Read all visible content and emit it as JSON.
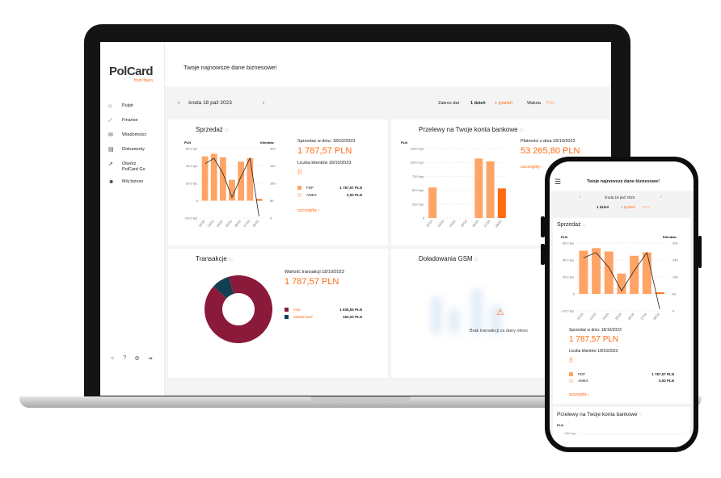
{
  "app": {
    "logo": "PolCard",
    "logo_sub": "from fiserv.",
    "header_title": "Twoje najnowsze dane biznesowe!"
  },
  "sidebar": {
    "items": [
      {
        "icon": "home-icon",
        "glyph": "⌂",
        "label": "Pulpit"
      },
      {
        "icon": "chart-icon",
        "glyph": "⟋",
        "label": "Finanse"
      },
      {
        "icon": "mail-icon",
        "glyph": "✉",
        "label": "Wiadomości"
      },
      {
        "icon": "document-icon",
        "glyph": "▤",
        "label": "Dokumenty"
      },
      {
        "icon": "open-link-icon",
        "glyph": "⇗",
        "label": "Otwórz PolCard Go"
      },
      {
        "icon": "users-icon",
        "glyph": "☻",
        "label": "Mój biznes"
      }
    ],
    "footer": [
      {
        "icon": "brightness-icon",
        "glyph": "☼"
      },
      {
        "icon": "help-icon",
        "glyph": "?"
      },
      {
        "icon": "settings-icon",
        "glyph": "⚙"
      },
      {
        "icon": "logout-icon",
        "glyph": "⇥"
      }
    ]
  },
  "datebar": {
    "prev": "‹",
    "date": "środa 18 paź 2023",
    "next": "›",
    "range_label": "Zakres dat",
    "range_day": "1 dzień",
    "range_week": "1 tydzień",
    "currency_label": "Waluta",
    "currency": "PLN"
  },
  "sales": {
    "title": "Sprzedaż",
    "info": "ⓘ",
    "label_date": "Sprzedaż w dniu:  18/10/2023",
    "amount": "1 787,57 PLN",
    "clients_label": "Liczba klientów  18/10/2023",
    "clients": "8",
    "legend": [
      {
        "name": "FDP",
        "value": "1 787,57 PLN",
        "color": "#ffa466"
      },
      {
        "name": "AMEX",
        "value": "0,00 PLN",
        "color": "#ffe1cc"
      }
    ],
    "link": "szczegóły ›"
  },
  "transfers": {
    "title": "Przelewy na Twoje konta bankowe",
    "info": "ⓘ",
    "label_date": "Płatności z dnia 18/10/2023",
    "amount": "53 265,80 PLN",
    "link": "szczegóły ›"
  },
  "transactions": {
    "title": "Transakcje",
    "info": "ⓘ",
    "label_date": "Wartość transakcji 18/10/2023",
    "amount": "1 787,57 PLN",
    "legend": [
      {
        "name": "Visa",
        "value": "1 635,55 PLN",
        "color": "#8b1a3a"
      },
      {
        "name": "MasterCard",
        "value": "152,02 PLN",
        "color": "#123f54"
      }
    ]
  },
  "gsm": {
    "title": "Doładowania GSM",
    "info": "ⓘ",
    "empty": "Brak transakcji za dany okres"
  },
  "phone": {
    "menu": "☰",
    "title": "Twoje najnowsze dane biznesowe!",
    "date": "środa 18 paź 2023",
    "range_day": "1 dzień",
    "range_week": "1 tydzień",
    "currency": "PLN",
    "sales_title": "Sprzedaż",
    "sales_label_date": "Sprzedaż w dniu:  18/10/2023",
    "sales_amount": "1 787,57 PLN",
    "clients_label": "Liczba klientów  18/10/2023",
    "clients": "8",
    "legend": [
      {
        "name": "FDP",
        "value": "1 787,57 PLN"
      },
      {
        "name": "AMEX",
        "value": "0,00 PLN"
      }
    ],
    "link": "szczegóły ›",
    "transfers_title": "Przelewy na Twoje konta bankowe",
    "transfers_unit": "PLN",
    "transfers_tick": "125.0 tys."
  },
  "chart_data": [
    {
      "type": "bar",
      "name": "sales-chart",
      "categories": [
        "12/10",
        "13/10",
        "14/10",
        "15/10",
        "16/10",
        "17/10",
        "18/10"
      ],
      "ylabel_left": "PLN",
      "ylabel_right": "Klientów",
      "y_ticks_left": [
        "60.0 tys.",
        "40.0 tys.",
        "20.0 tys.",
        "0",
        "−20.0 tys."
      ],
      "y_ticks_right": [
        "320",
        "240",
        "160",
        "80",
        "0"
      ],
      "ylim": [
        -20000,
        60000
      ],
      "ylim_right": [
        0,
        320
      ],
      "series": [
        {
          "values": [
            51000,
            54000,
            50000,
            24000,
            45000,
            49000,
            1787.57
          ]
        },
        {
          "values": [
            250,
            275,
            205,
            95,
            190,
            275,
            8
          ]
        }
      ]
    },
    {
      "type": "bar",
      "name": "transfers-chart",
      "categories": [
        "12/10",
        "13/10",
        "14/10",
        "15/10",
        "16/10",
        "17/10",
        "18/10"
      ],
      "ylabel": "PLN",
      "y_ticks": [
        "125.0 tys.",
        "100.0 tys.",
        "75.0 tys.",
        "50.0 tys.",
        "25.0 tys.",
        "0"
      ],
      "ylim": [
        0,
        125000
      ],
      "values": [
        55000,
        0,
        0,
        0,
        107000,
        102000,
        53265.8
      ]
    },
    {
      "type": "pie",
      "name": "transactions-donut",
      "labels": [
        "Visa",
        "MasterCard"
      ],
      "values": [
        1635.55,
        152.02
      ]
    }
  ]
}
